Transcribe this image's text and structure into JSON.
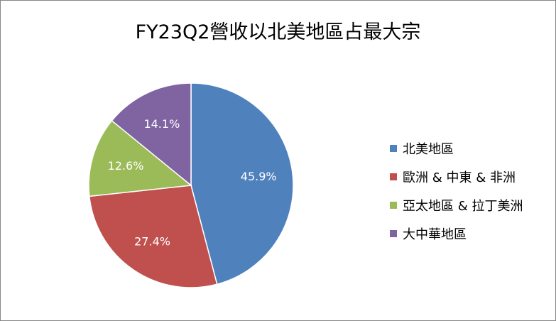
{
  "chart_data": {
    "type": "pie",
    "title": "FY23Q2營收以北美地區占最大宗",
    "categories": [
      "北美地區",
      "歐洲 & 中東 & 非洲",
      "亞太地區 & 拉丁美洲",
      "大中華地區"
    ],
    "values": [
      45.9,
      27.4,
      12.6,
      14.1
    ],
    "data_labels": [
      "45.9%",
      "27.4%",
      "12.6%",
      "14.1%"
    ],
    "colors": [
      "#4F81BD",
      "#C0504D",
      "#9BBB59",
      "#8064A2"
    ],
    "legend_position": "right"
  }
}
